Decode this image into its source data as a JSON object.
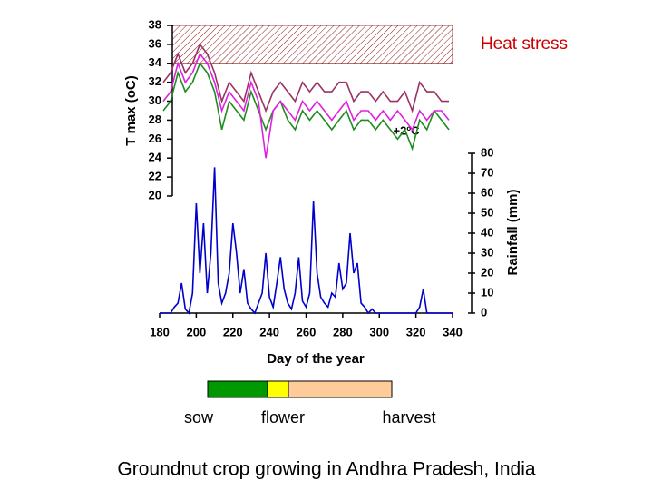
{
  "chart_data": {
    "type": "line",
    "ylabel": "T max (oC)",
    "y2label": "Rainfall (mm)",
    "xlabel": "Day of the year",
    "xlim": [
      180,
      340
    ],
    "xticks": [
      180,
      200,
      220,
      240,
      260,
      280,
      300,
      320,
      340
    ],
    "ylim": [
      20,
      38
    ],
    "yticks": [
      20,
      22,
      24,
      26,
      28,
      30,
      32,
      34,
      36,
      38
    ],
    "y2lim": [
      0,
      80
    ],
    "y2ticks": [
      0,
      10,
      20,
      30,
      40,
      50,
      60,
      70,
      80
    ],
    "heat_stress": {
      "label": "Heat stress",
      "range": [
        34,
        38
      ]
    },
    "annotation": "+2ºC",
    "x": [
      182,
      186,
      190,
      194,
      198,
      202,
      206,
      210,
      214,
      218,
      222,
      226,
      230,
      234,
      238,
      242,
      246,
      250,
      254,
      258,
      262,
      266,
      270,
      274,
      278,
      282,
      286,
      290,
      294,
      298,
      302,
      306,
      310,
      314,
      318,
      322,
      326,
      330,
      334,
      338
    ],
    "series": [
      {
        "color": "#1e8c1e",
        "values": [
          29,
          30,
          33,
          31,
          32,
          34,
          33,
          31,
          27,
          30,
          29,
          28,
          31,
          29,
          27,
          29,
          30,
          28,
          27,
          29,
          28,
          29,
          28,
          27,
          28,
          29,
          27,
          28,
          28,
          27,
          28,
          27,
          26,
          27,
          25,
          28,
          27,
          29,
          28,
          27
        ]
      },
      {
        "color": "#993366",
        "values": [
          32,
          33,
          35,
          33,
          34,
          36,
          35,
          33,
          30,
          32,
          31,
          30,
          33,
          31,
          29,
          31,
          32,
          31,
          30,
          32,
          31,
          32,
          31,
          31,
          32,
          32,
          30,
          31,
          31,
          30,
          31,
          30,
          30,
          31,
          29,
          32,
          31,
          31,
          30,
          30
        ]
      },
      {
        "color": "#e020e0",
        "values": [
          30,
          31,
          34,
          32,
          33,
          35,
          34,
          32,
          29,
          31,
          30,
          29,
          32,
          30,
          24,
          29,
          30,
          29,
          28,
          30,
          29,
          30,
          29,
          28,
          29,
          30,
          28,
          29,
          29,
          28,
          29,
          28,
          29,
          28,
          27,
          29,
          28,
          29,
          29,
          28
        ]
      },
      {
        "color": "#0000cc",
        "axis": "y2",
        "x": [
          180,
          182,
          184,
          186,
          188,
          190,
          192,
          194,
          196,
          198,
          200,
          202,
          204,
          206,
          208,
          210,
          212,
          214,
          216,
          218,
          220,
          222,
          224,
          226,
          228,
          230,
          232,
          234,
          236,
          238,
          240,
          242,
          244,
          246,
          248,
          250,
          252,
          254,
          256,
          258,
          260,
          262,
          264,
          266,
          268,
          270,
          272,
          274,
          276,
          278,
          280,
          282,
          284,
          286,
          288,
          290,
          292,
          294,
          296,
          298,
          300,
          302,
          304,
          306,
          308,
          310,
          312,
          314,
          316,
          318,
          320,
          322,
          324,
          326,
          328,
          330,
          332,
          334,
          336,
          338,
          340
        ],
        "values": [
          0,
          0,
          0,
          0,
          3,
          5,
          15,
          2,
          0,
          10,
          55,
          20,
          45,
          10,
          30,
          73,
          15,
          5,
          10,
          20,
          45,
          30,
          10,
          22,
          5,
          2,
          0,
          5,
          10,
          30,
          8,
          3,
          15,
          28,
          12,
          5,
          2,
          10,
          28,
          6,
          3,
          10,
          56,
          20,
          8,
          5,
          3,
          10,
          8,
          25,
          12,
          15,
          40,
          20,
          25,
          5,
          3,
          0,
          2,
          0,
          0,
          0,
          0,
          0,
          0,
          0,
          0,
          0,
          0,
          0,
          0,
          3,
          12,
          0,
          0,
          0,
          0,
          0,
          0,
          0,
          0
        ]
      }
    ],
    "stages": [
      {
        "label": "sow",
        "color": "#009900"
      },
      {
        "label": "flower",
        "color": "#ffff00"
      },
      {
        "label": "harvest",
        "color": "#ffcc99"
      }
    ],
    "caption": "Groundnut crop growing in Andhra Pradesh, India"
  }
}
